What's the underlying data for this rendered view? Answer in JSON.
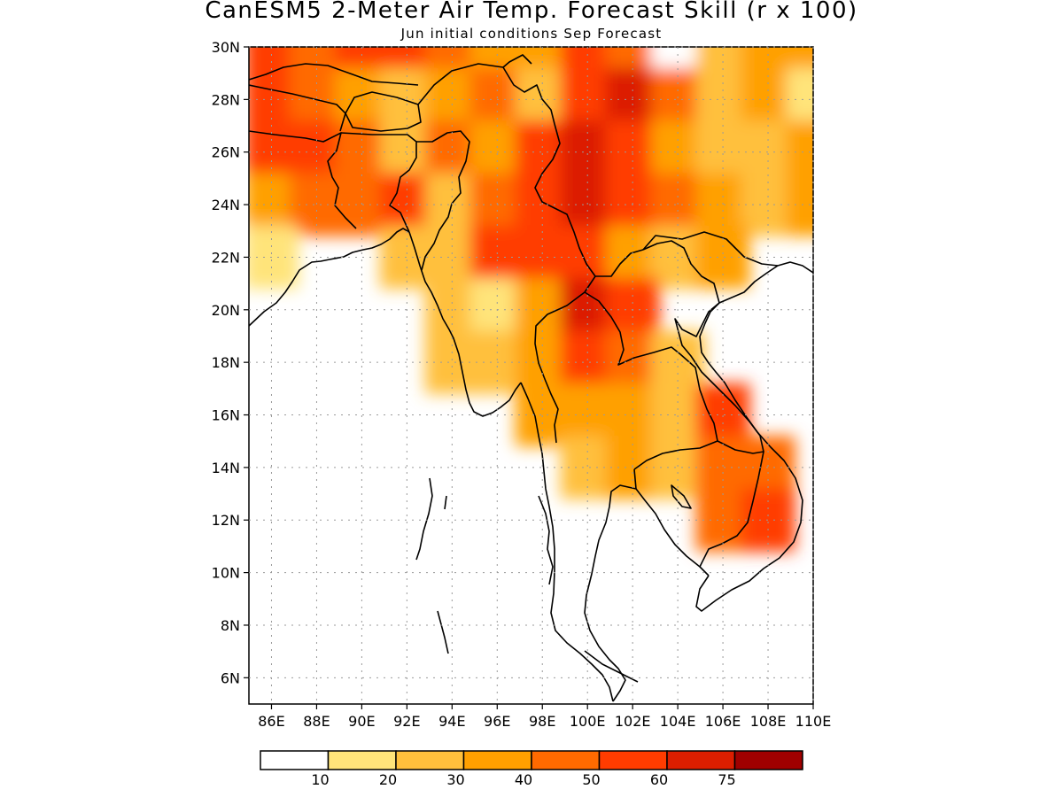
{
  "title": "CanESM5 2-Meter Air Temp. Forecast Skill (r x 100)",
  "subtitle": "Jun initial conditions  Sep Forecast",
  "map": {
    "region": "Bangladesh, Myanmar, Thailand, Laos, Cambodia, Vietnam",
    "lon_range": [
      85,
      110
    ],
    "lat_range": [
      5,
      30
    ],
    "lat_labels": [
      "30N",
      "28N",
      "26N",
      "24N",
      "22N",
      "20N",
      "18N",
      "16N",
      "14N",
      "12N",
      "10N",
      "8N",
      "6N"
    ],
    "lon_labels": [
      "86E",
      "88E",
      "90E",
      "92E",
      "94E",
      "96E",
      "98E",
      "100E",
      "102E",
      "104E",
      "106E",
      "108E",
      "110E"
    ],
    "grid": "dotted"
  },
  "colorbar": {
    "labels": [
      "10",
      "20",
      "30",
      "40",
      "50",
      "60",
      "75"
    ],
    "colors": [
      "#ffffff",
      "#ffe47a",
      "#ffc03c",
      "#ffa000",
      "#ff6a00",
      "#ff3c00",
      "#dc1e00",
      "#a00000"
    ]
  },
  "chart_data": {
    "type": "heatmap",
    "title": "CanESM5 2-Meter Air Temp. Forecast Skill (r x 100)",
    "subtitle": "Jun initial conditions  Sep Forecast",
    "xlim": [
      85,
      110
    ],
    "ylim": [
      5,
      30
    ],
    "levels": [
      10,
      20,
      30,
      40,
      50,
      60,
      75
    ],
    "lon": [
      86,
      88,
      90,
      92,
      94,
      96,
      98,
      100,
      102,
      104,
      106,
      108,
      110
    ],
    "lat": [
      30,
      28,
      26,
      24,
      22,
      20,
      18,
      16,
      14,
      12
    ],
    "values": [
      [
        55,
        48,
        52,
        58,
        45,
        30,
        35,
        55,
        45,
        8,
        25,
        35,
        35
      ],
      [
        52,
        40,
        38,
        22,
        38,
        45,
        25,
        55,
        65,
        40,
        25,
        30,
        15
      ],
      [
        50,
        55,
        45,
        25,
        48,
        38,
        50,
        65,
        50,
        35,
        25,
        25,
        30
      ],
      [
        30,
        42,
        45,
        52,
        25,
        45,
        55,
        65,
        55,
        45,
        30,
        25,
        30
      ],
      [
        15,
        null,
        null,
        25,
        20,
        50,
        50,
        55,
        30,
        25,
        30,
        null,
        null
      ],
      [
        null,
        null,
        null,
        null,
        20,
        15,
        35,
        60,
        55,
        null,
        null,
        null,
        null
      ],
      [
        null,
        null,
        null,
        null,
        25,
        20,
        30,
        55,
        40,
        25,
        null,
        null,
        null
      ],
      [
        null,
        null,
        null,
        null,
        null,
        null,
        35,
        35,
        30,
        25,
        55,
        null,
        null
      ],
      [
        null,
        null,
        null,
        null,
        null,
        null,
        null,
        25,
        30,
        20,
        45,
        45,
        null
      ],
      [
        null,
        null,
        null,
        null,
        null,
        null,
        null,
        null,
        null,
        null,
        40,
        55,
        null
      ]
    ]
  }
}
